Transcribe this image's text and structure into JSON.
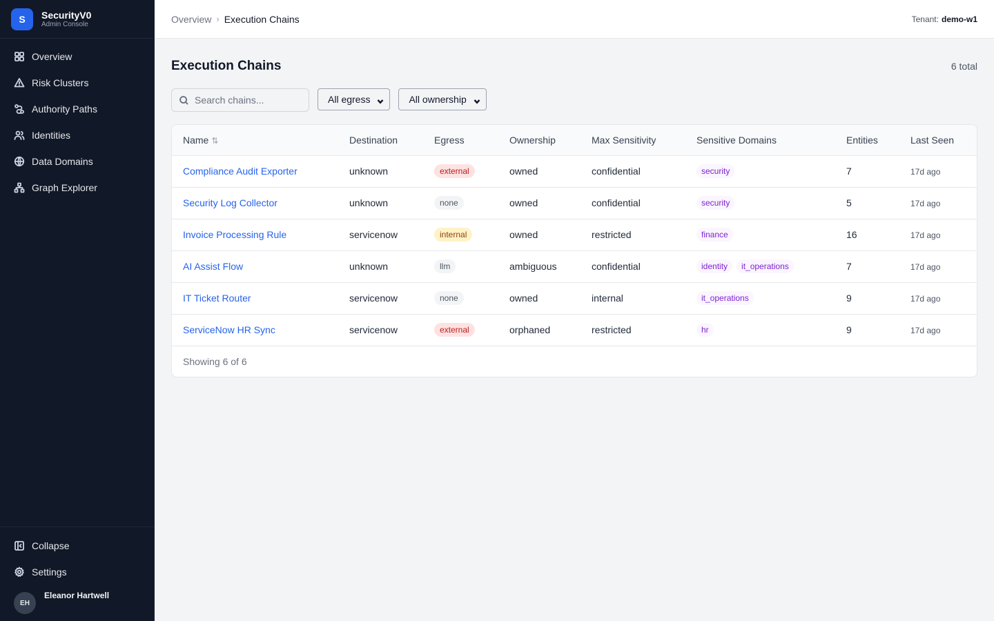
{
  "brand": {
    "initial": "S",
    "name": "SecurityV0",
    "subtitle": "Admin Console"
  },
  "nav": [
    {
      "label": "Overview",
      "icon": "grid-icon"
    },
    {
      "label": "Risk Clusters",
      "icon": "alert-triangle-icon"
    },
    {
      "label": "Authority Paths",
      "icon": "route-icon"
    },
    {
      "label": "Identities",
      "icon": "users-icon"
    },
    {
      "label": "Data Domains",
      "icon": "globe-icon"
    },
    {
      "label": "Graph Explorer",
      "icon": "network-icon"
    }
  ],
  "sidebar_bottom": {
    "collapse_label": "Collapse",
    "settings_label": "Settings"
  },
  "user": {
    "initials": "EH",
    "name": "Eleanor Hartwell"
  },
  "breadcrumb": {
    "parent": "Overview",
    "separator": "›",
    "current": "Execution Chains"
  },
  "tenant": {
    "label": "Tenant:",
    "value": "demo-w1"
  },
  "page": {
    "title": "Execution Chains",
    "total": "6 total"
  },
  "filters": {
    "search_placeholder": "Search chains...",
    "egress_selected": "All egress",
    "ownership_selected": "All ownership"
  },
  "table": {
    "headers": [
      "Name",
      "Destination",
      "Egress",
      "Ownership",
      "Max Sensitivity",
      "Sensitive Domains",
      "Entities",
      "Last Seen"
    ],
    "sort_indicator": "⇅",
    "rows": [
      {
        "name": "Compliance Audit Exporter",
        "destination": "unknown",
        "egress": "external",
        "ownership": "owned",
        "sensitivity": "confidential",
        "domains": [
          "security"
        ],
        "entities": "7",
        "last_seen": "17d ago"
      },
      {
        "name": "Security Log Collector",
        "destination": "unknown",
        "egress": "none",
        "ownership": "owned",
        "sensitivity": "confidential",
        "domains": [
          "security"
        ],
        "entities": "5",
        "last_seen": "17d ago"
      },
      {
        "name": "Invoice Processing Rule",
        "destination": "servicenow",
        "egress": "internal",
        "ownership": "owned",
        "sensitivity": "restricted",
        "domains": [
          "finance"
        ],
        "entities": "16",
        "last_seen": "17d ago"
      },
      {
        "name": "AI Assist Flow",
        "destination": "unknown",
        "egress": "llm",
        "ownership": "ambiguous",
        "sensitivity": "confidential",
        "domains": [
          "identity",
          "it_operations"
        ],
        "entities": "7",
        "last_seen": "17d ago"
      },
      {
        "name": "IT Ticket Router",
        "destination": "servicenow",
        "egress": "none",
        "ownership": "owned",
        "sensitivity": "internal",
        "domains": [
          "it_operations"
        ],
        "entities": "9",
        "last_seen": "17d ago"
      },
      {
        "name": "ServiceNow HR Sync",
        "destination": "servicenow",
        "egress": "external",
        "ownership": "orphaned",
        "sensitivity": "restricted",
        "domains": [
          "hr"
        ],
        "entities": "9",
        "last_seen": "17d ago"
      }
    ],
    "footer": "Showing 6 of 6"
  },
  "colors": {
    "sidebar_bg": "#111827",
    "accent": "#2563eb",
    "egress_external": "#b91c1c",
    "egress_internal": "#92400e",
    "domain_tag": "#7e22ce"
  }
}
